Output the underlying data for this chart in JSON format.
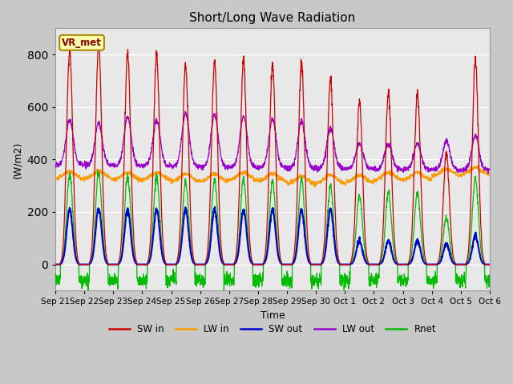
{
  "title": "Short/Long Wave Radiation",
  "ylabel": "(W/m2)",
  "xlabel": "Time",
  "ylim": [
    -100,
    900
  ],
  "fig_facecolor": "#c8c8c8",
  "axes_facecolor": "#e8e8e8",
  "station_label": "VR_met",
  "legend_entries": [
    "SW in",
    "LW in",
    "SW out",
    "LW out",
    "Rnet"
  ],
  "line_colors": {
    "SW in": "#cc0000",
    "LW in": "#ff9900",
    "SW out": "#0000cc",
    "LW out": "#9900cc",
    "Rnet": "#00bb00"
  },
  "tick_labels": [
    "Sep 21",
    "Sep 22",
    "Sep 23",
    "Sep 24",
    "Sep 25",
    "Sep 26",
    "Sep 27",
    "Sep 28",
    "Sep 29",
    "Sep 30",
    "Oct 1",
    "Oct 2",
    "Oct 3",
    "Oct 4",
    "Oct 5",
    "Oct 6"
  ],
  "n_days": 15,
  "pts_per_day": 144,
  "sw_in_peaks": [
    820,
    840,
    800,
    800,
    760,
    770,
    780,
    760,
    770,
    710,
    620,
    660,
    650,
    420,
    780
  ],
  "lw_out_peaks": [
    550,
    540,
    560,
    550,
    575,
    570,
    565,
    555,
    545,
    520,
    460,
    460,
    460,
    470,
    490
  ],
  "sw_out_day_peaks": [
    210,
    215,
    210,
    210,
    210,
    210,
    210,
    210,
    210,
    210,
    90,
    90,
    90,
    80,
    110
  ],
  "lw_in_base": [
    325,
    325,
    320,
    320,
    315,
    315,
    320,
    315,
    305,
    310,
    310,
    320,
    320,
    335,
    340
  ],
  "rnet_night": -60,
  "grid_color": "#ffffff",
  "grid_linewidth": 0.8
}
